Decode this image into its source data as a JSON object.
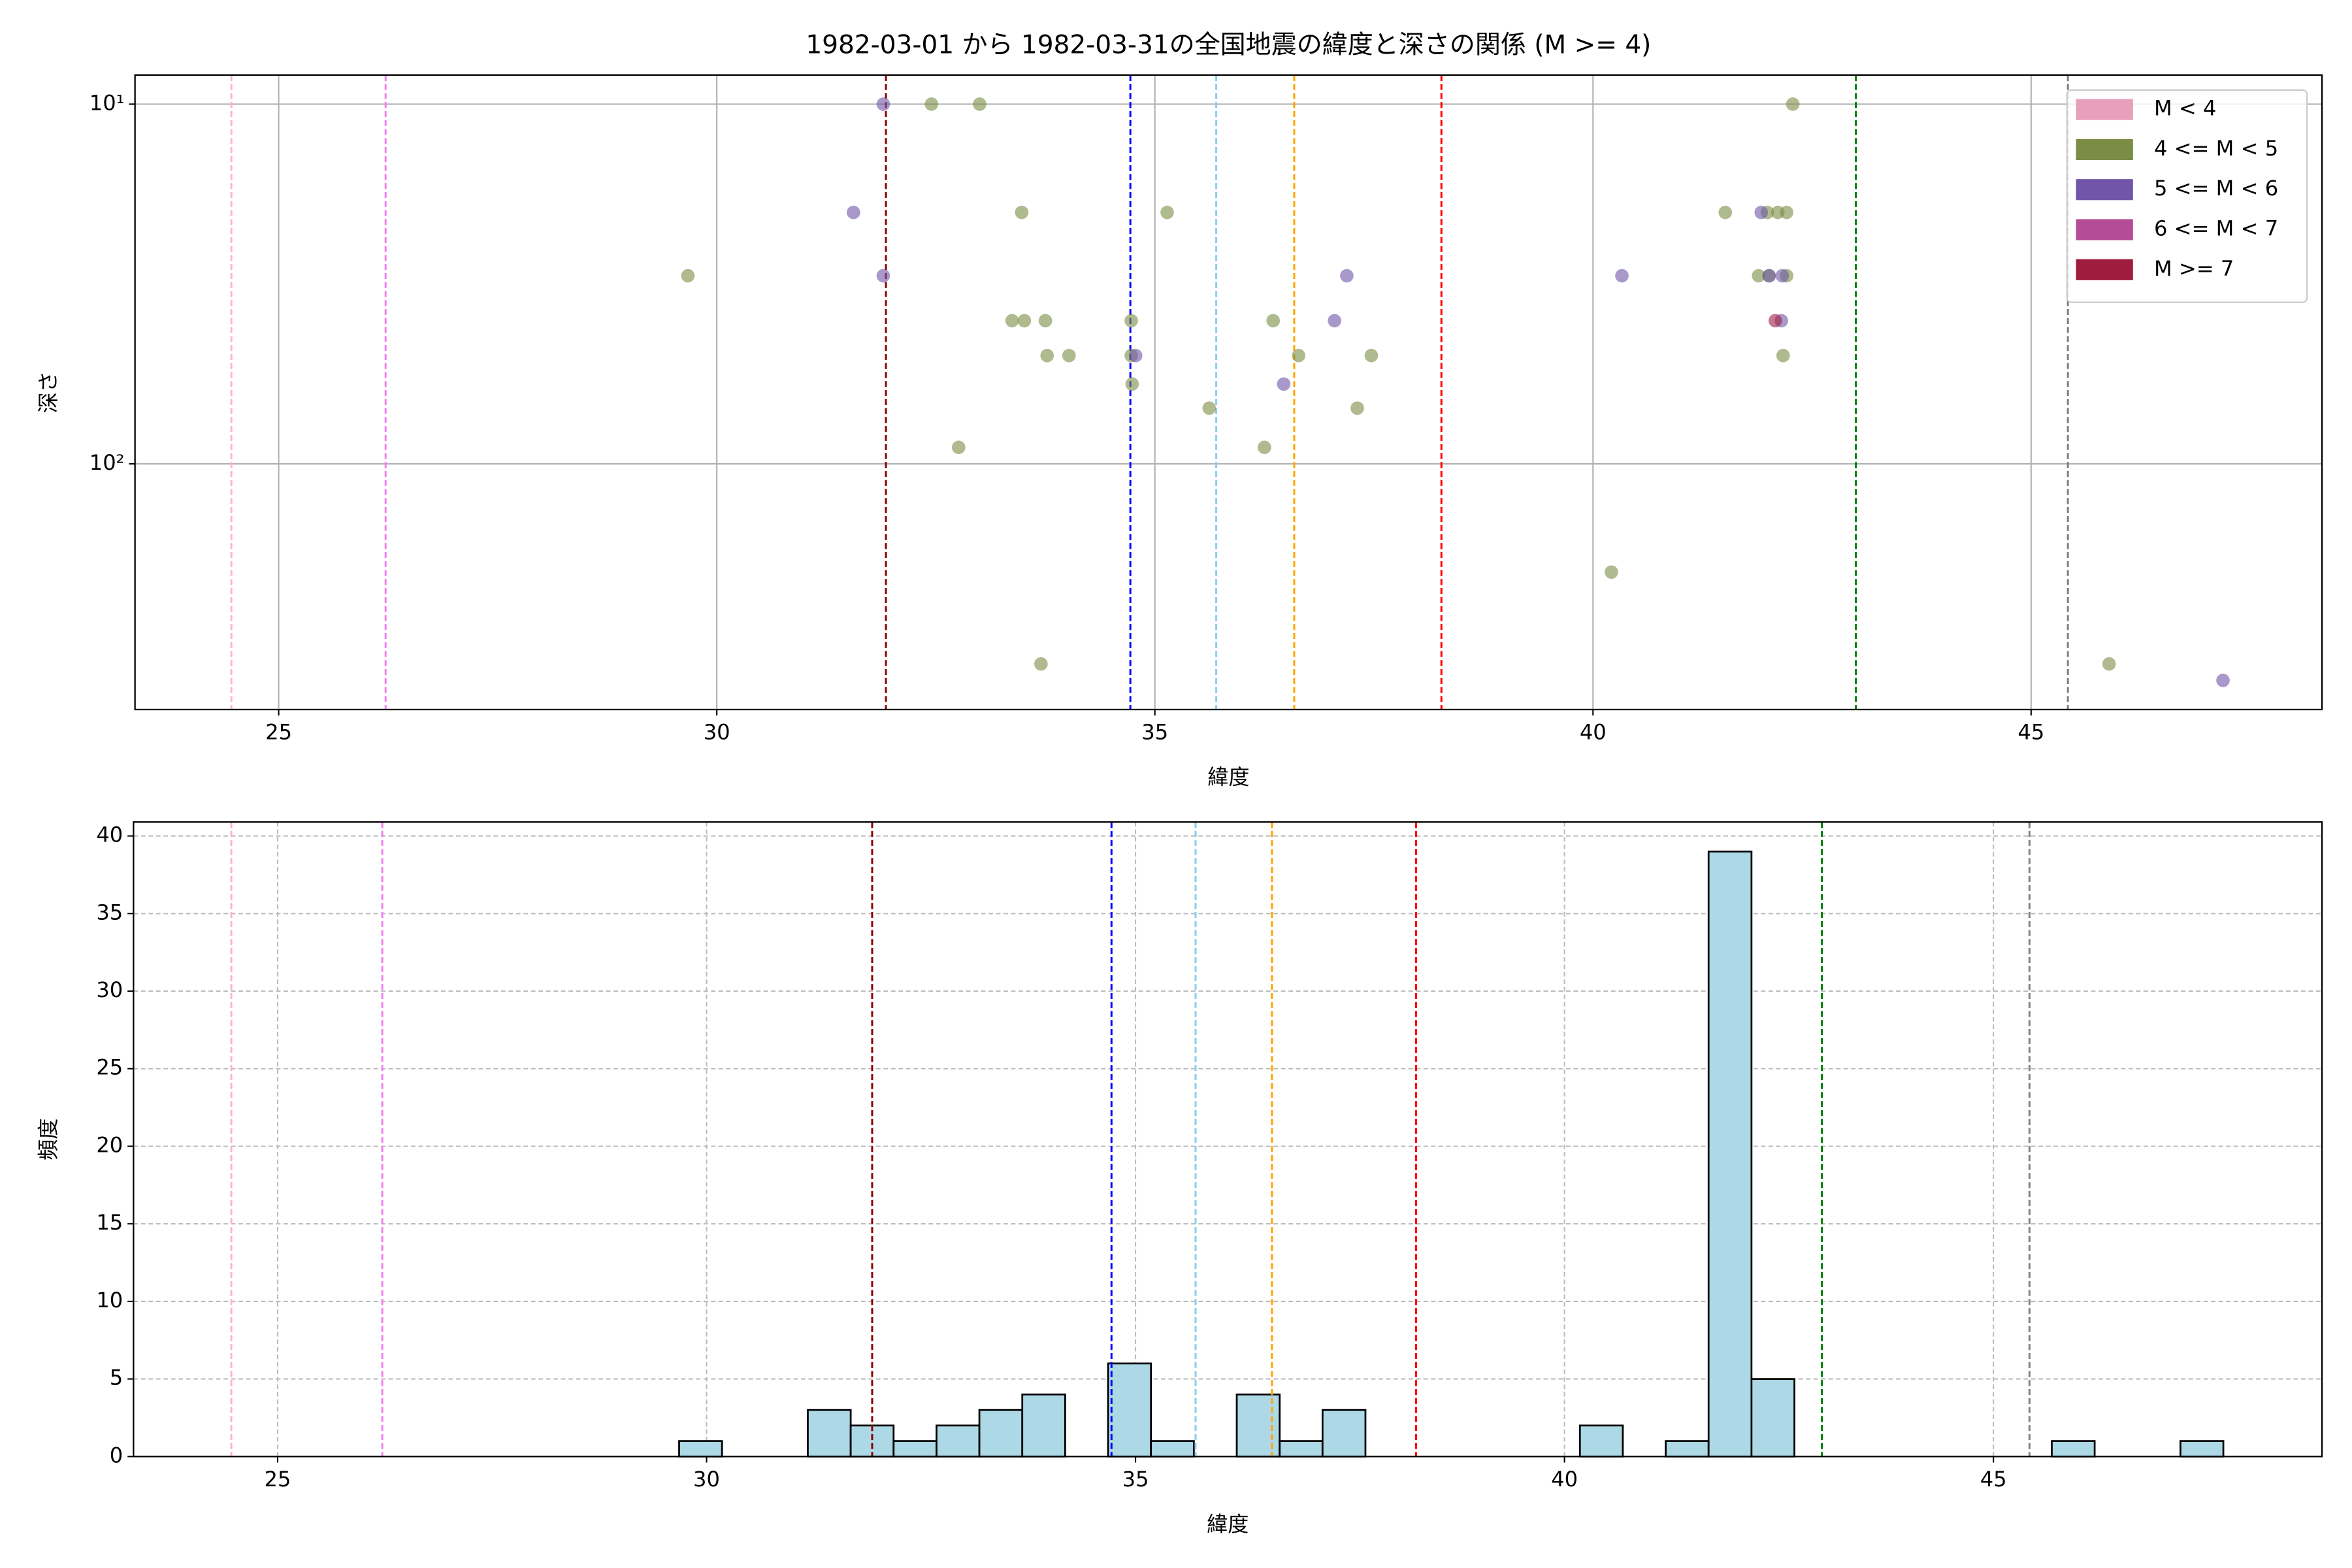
{
  "chart_data": [
    {
      "type": "scatter",
      "title": "1982-03-01 から 1982-03-31の全国地震の緯度と深さの関係 (M >= 4)",
      "xlabel": "緯度",
      "ylabel": "深さ",
      "xlim": [
        23.36,
        48.32
      ],
      "ylim": [
        8.3,
        482
      ],
      "yscale": "log",
      "y_inverted": true,
      "xticks": [
        25,
        30,
        35,
        40,
        45
      ],
      "yticks": [
        {
          "value": 10,
          "label": "10¹"
        },
        {
          "value": 100,
          "label": "10²"
        }
      ],
      "grid": true,
      "grid_style": "solid",
      "legend": "upper right",
      "vlines": [
        {
          "x": 24.46,
          "color": "#ffb6c1"
        },
        {
          "x": 26.22,
          "color": "#ee82ee"
        },
        {
          "x": 31.93,
          "color": "#8b0000"
        },
        {
          "x": 34.72,
          "color": "#0000ff"
        },
        {
          "x": 35.7,
          "color": "#87ceeb"
        },
        {
          "x": 36.59,
          "color": "#ffa500"
        },
        {
          "x": 38.27,
          "color": "#ff0000"
        },
        {
          "x": 43.0,
          "color": "#008000"
        },
        {
          "x": 45.42,
          "color": "#808080"
        }
      ],
      "series": [
        {
          "name": "M < 4",
          "color": "#e79fbb",
          "x": [],
          "values": []
        },
        {
          "name": "4 <= M < 5",
          "color": "#7b8c45",
          "x": [
            29.67,
            32.45,
            33.0,
            32.76,
            33.48,
            33.37,
            33.51,
            33.75,
            33.77,
            34.02,
            33.7,
            34.73,
            34.74,
            34.73,
            35.14,
            35.62,
            36.25,
            36.35,
            36.64,
            37.31,
            37.47,
            40.21,
            41.51,
            41.99,
            42.11,
            42.21,
            41.89,
            42.01,
            42.21,
            42.17,
            42.28,
            45.89
          ],
          "values": [
            30,
            10,
            10,
            90,
            20,
            40,
            40,
            40,
            50,
            50,
            360,
            40,
            60,
            50,
            20,
            70,
            90,
            40,
            50,
            70,
            50,
            200,
            20,
            20,
            20,
            20,
            30,
            30,
            30,
            50,
            10,
            360
          ]
        },
        {
          "name": "5 <= M < 6",
          "color": "#7055a8",
          "x": [
            31.56,
            31.9,
            31.9,
            34.78,
            36.47,
            37.05,
            37.19,
            40.33,
            41.92,
            42.01,
            42.16,
            42.15,
            47.19
          ],
          "values": [
            20,
            10,
            30,
            50,
            60,
            40,
            30,
            30,
            20,
            30,
            30,
            40,
            400
          ]
        },
        {
          "name": "6 <= M < 7",
          "color": "#b44c97",
          "x": [],
          "values": []
        },
        {
          "name": "M >= 7",
          "color": "#a01c3e",
          "x": [
            42.08
          ],
          "values": [
            40
          ]
        }
      ]
    },
    {
      "type": "histogram",
      "xlabel": "緯度",
      "ylabel": "頻度",
      "xlim": [
        23.32,
        48.83
      ],
      "ylim": [
        0,
        40.9
      ],
      "xticks": [
        25,
        30,
        35,
        40,
        45
      ],
      "yticks": [
        0,
        5,
        10,
        15,
        20,
        25,
        30,
        35,
        40
      ],
      "grid": true,
      "grid_style": "dashed",
      "color": "#add8e6",
      "edgecolor": "#000000",
      "vlines": [
        {
          "x": 24.46,
          "color": "#ffb6c1"
        },
        {
          "x": 26.22,
          "color": "#ee82ee"
        },
        {
          "x": 31.93,
          "color": "#8b0000"
        },
        {
          "x": 34.72,
          "color": "#0000ff"
        },
        {
          "x": 35.7,
          "color": "#87ceeb"
        },
        {
          "x": 36.59,
          "color": "#ffa500"
        },
        {
          "x": 38.27,
          "color": "#ff0000"
        },
        {
          "x": 43.0,
          "color": "#008000"
        },
        {
          "x": 45.42,
          "color": "#808080"
        }
      ],
      "bins": [
        29.68,
        30.18,
        30.68,
        31.18,
        31.68,
        32.18,
        32.68,
        33.18,
        33.68,
        34.18,
        34.68,
        35.18,
        35.68,
        36.18,
        36.68,
        37.18,
        37.68,
        38.18,
        38.68,
        39.18,
        39.68,
        40.18,
        40.68,
        41.18,
        41.68,
        42.18,
        42.68,
        43.18,
        43.68,
        44.18,
        44.68,
        45.18,
        45.68,
        46.18,
        46.68,
        47.18,
        47.68
      ],
      "values": [
        1,
        0,
        0,
        3,
        2,
        1,
        2,
        3,
        4,
        0,
        6,
        1,
        0,
        4,
        1,
        3,
        0,
        0,
        0,
        0,
        0,
        2,
        0,
        1,
        39,
        5,
        0,
        0,
        0,
        0,
        0,
        0,
        1,
        0,
        0,
        1
      ]
    }
  ]
}
